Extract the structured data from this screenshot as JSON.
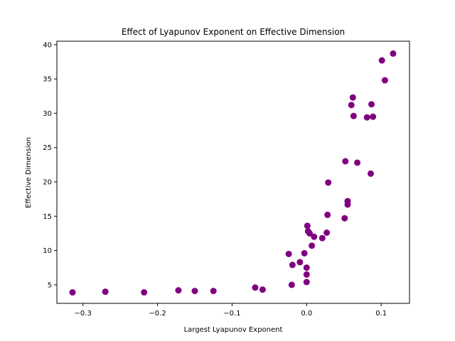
{
  "chart_data": {
    "type": "scatter",
    "title": "Effect of Lyapunov Exponent on Effective Dimension",
    "xlabel": "Largest Lyapunov Exponent",
    "ylabel": "Effective Dimension",
    "xlim": [
      -0.335,
      0.138
    ],
    "ylim": [
      2.3,
      40.5
    ],
    "xticks": [
      -0.3,
      -0.2,
      -0.1,
      0.0,
      0.1
    ],
    "xtick_labels": [
      "−0.3",
      "−0.2",
      "−0.1",
      "0.0",
      "0.1"
    ],
    "yticks": [
      5,
      10,
      15,
      20,
      25,
      30,
      35,
      40
    ],
    "ytick_labels": [
      "5",
      "10",
      "15",
      "20",
      "25",
      "30",
      "35",
      "40"
    ],
    "grid": false,
    "marker_color": "#800080",
    "points": [
      {
        "x": -0.314,
        "y": 3.9
      },
      {
        "x": -0.27,
        "y": 4.0
      },
      {
        "x": -0.218,
        "y": 3.9
      },
      {
        "x": -0.172,
        "y": 4.2
      },
      {
        "x": -0.15,
        "y": 4.1
      },
      {
        "x": -0.125,
        "y": 4.1
      },
      {
        "x": -0.069,
        "y": 4.6
      },
      {
        "x": -0.059,
        "y": 4.3
      },
      {
        "x": -0.024,
        "y": 9.5
      },
      {
        "x": -0.02,
        "y": 5.0
      },
      {
        "x": -0.019,
        "y": 7.9
      },
      {
        "x": -0.009,
        "y": 8.3
      },
      {
        "x": -0.003,
        "y": 9.6
      },
      {
        "x": 0.0,
        "y": 7.5
      },
      {
        "x": 0.0,
        "y": 6.5
      },
      {
        "x": 0.0,
        "y": 5.4
      },
      {
        "x": 0.001,
        "y": 13.6
      },
      {
        "x": 0.002,
        "y": 12.8
      },
      {
        "x": 0.004,
        "y": 12.5
      },
      {
        "x": 0.007,
        "y": 10.7
      },
      {
        "x": 0.01,
        "y": 12.0
      },
      {
        "x": 0.021,
        "y": 11.8
      },
      {
        "x": 0.027,
        "y": 12.6
      },
      {
        "x": 0.028,
        "y": 15.2
      },
      {
        "x": 0.029,
        "y": 19.9
      },
      {
        "x": 0.051,
        "y": 14.7
      },
      {
        "x": 0.052,
        "y": 23.0
      },
      {
        "x": 0.055,
        "y": 17.2
      },
      {
        "x": 0.055,
        "y": 16.7
      },
      {
        "x": 0.06,
        "y": 31.2
      },
      {
        "x": 0.062,
        "y": 32.3
      },
      {
        "x": 0.063,
        "y": 29.6
      },
      {
        "x": 0.068,
        "y": 22.8
      },
      {
        "x": 0.081,
        "y": 29.4
      },
      {
        "x": 0.086,
        "y": 21.2
      },
      {
        "x": 0.087,
        "y": 31.3
      },
      {
        "x": 0.089,
        "y": 29.5
      },
      {
        "x": 0.101,
        "y": 37.7
      },
      {
        "x": 0.105,
        "y": 34.8
      },
      {
        "x": 0.116,
        "y": 38.7
      }
    ]
  }
}
